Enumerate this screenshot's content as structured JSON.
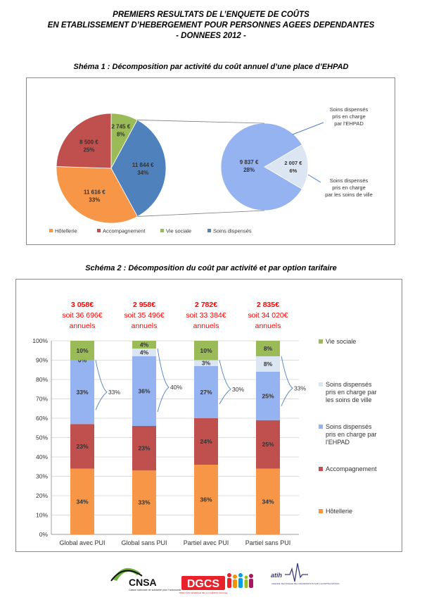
{
  "title": {
    "line1": "PREMIERS RESULTATS DE L’ENQUETE DE COÛTS",
    "line2": "EN ETABLISSEMENT D’HEBERGEMENT POUR PERSONNES AGEES DEPENDANTES",
    "line3": "- DONNEES 2012 -"
  },
  "colors": {
    "hotellerie": "#f79646",
    "accompagnement": "#c0504d",
    "vie_sociale": "#9bbb59",
    "soins": "#4f81bd",
    "soins_ehpad": "#95b3f0",
    "soins_ville": "#dce6f2",
    "red_text": "#ff0000"
  },
  "chart_data": [
    {
      "type": "pie",
      "title": "Shéma 1 : Décomposition par activité du coût annuel d’une place d’EHPAD",
      "slices": [
        {
          "key": "vie_sociale",
          "label": "Vie sociale",
          "value": 2745,
          "value_label": "2 745 €",
          "percent_label": "8%"
        },
        {
          "key": "soins",
          "label": "Soins dispensés",
          "value": 11844,
          "value_label": "11 844 €",
          "percent_label": "34%"
        },
        {
          "key": "hotellerie",
          "label": "Hôtellerie",
          "value": 11616,
          "value_label": "11 616 €",
          "percent_label": "33%"
        },
        {
          "key": "accompagnement",
          "label": "Accompagnement",
          "value": 8500,
          "value_label": "8 500 €",
          "percent_label": "25%"
        }
      ],
      "legend": [
        "Hôtellerie",
        "Accompagnement",
        "Vie sociale",
        "Soins dispensés"
      ],
      "legend_position": "bottom",
      "breakdown": {
        "slices": [
          {
            "key": "soins_ehpad",
            "value": 9837,
            "value_label": "9 837 €",
            "percent_label": "28%",
            "annotation": "Soins dispensés pris en charge par l’EHPAD"
          },
          {
            "key": "soins_ville",
            "value": 2007,
            "value_label": "2 007 €",
            "percent_label": "6%",
            "annotation": "Soins dispensés pris en charge par les soins de ville"
          }
        ]
      }
    },
    {
      "type": "bar",
      "stacked": true,
      "normalized": true,
      "title": "Schéma 2 : Décomposition du coût par activité et par option tarifaire",
      "categories": [
        "Global avec PUI",
        "Global sans PUI",
        "Partiel avec PUI",
        "Partiel sans PUI"
      ],
      "ylim": [
        0,
        100
      ],
      "y_ticks": [
        "0%",
        "10%",
        "20%",
        "30%",
        "40%",
        "50%",
        "60%",
        "70%",
        "80%",
        "90%",
        "100%"
      ],
      "grid": true,
      "series": [
        {
          "name": "Hôtellerie",
          "key": "hotellerie",
          "values": [
            34,
            33,
            36,
            34
          ],
          "labels": [
            "34%",
            "33%",
            "36%",
            "34%"
          ]
        },
        {
          "name": "Accompagnement",
          "key": "accompagnement",
          "values": [
            23,
            23,
            24,
            25
          ],
          "labels": [
            "23%",
            "23%",
            "24%",
            "25%"
          ]
        },
        {
          "name": "Soins dispensés pris en charge par l'EHPAD",
          "key": "soins_ehpad",
          "values": [
            33,
            36,
            27,
            25
          ],
          "labels": [
            "33%",
            "36%",
            "27%",
            "25%"
          ]
        },
        {
          "name": "Soins dispensés pris en charge par les soins de ville",
          "key": "soins_ville",
          "values": [
            0,
            4,
            3,
            8
          ],
          "labels": [
            "0%",
            "4%",
            "3%",
            "8%"
          ]
        },
        {
          "name": "Vie sociale",
          "key": "vie_sociale",
          "values": [
            10,
            4,
            10,
            8
          ],
          "labels": [
            "10%",
            "4%",
            "10%",
            "8%"
          ]
        }
      ],
      "soins_total_labels": [
        "33%",
        "40%",
        "30%",
        "33%"
      ],
      "cost_annotations": [
        {
          "monthly": "3 058€",
          "annual": "soit 36 696€",
          "unit": "annuels"
        },
        {
          "monthly": "2 958€",
          "annual": "soit 35 496€",
          "unit": "annuels"
        },
        {
          "monthly": "2 782€",
          "annual": "soit 33 384€",
          "unit": "annuels"
        },
        {
          "monthly": "2 835€",
          "annual": "soit 34 020€",
          "unit": "annuels"
        }
      ],
      "legend": [
        "Vie sociale",
        "Soins dispensés pris en charge par les soins de ville",
        "Soins dispensés pris en charge par l'EHPAD",
        "Accompagnement",
        "Hôtellerie"
      ],
      "legend_position": "right"
    }
  ],
  "logos": {
    "cnsa": {
      "name": "CNSA",
      "tagline": "Caisse nationale de solidarité pour l’autonomie"
    },
    "dgcs": {
      "name": "DGCS",
      "tagline": "DIRECTION GÉNÉRALE DE LA COHÉSION SOCIALE"
    },
    "atih": {
      "name": "atih",
      "tagline": "AGENCE TECHNIQUE DE L’INFORMATION SUR L’HOSPITALISATION"
    }
  }
}
